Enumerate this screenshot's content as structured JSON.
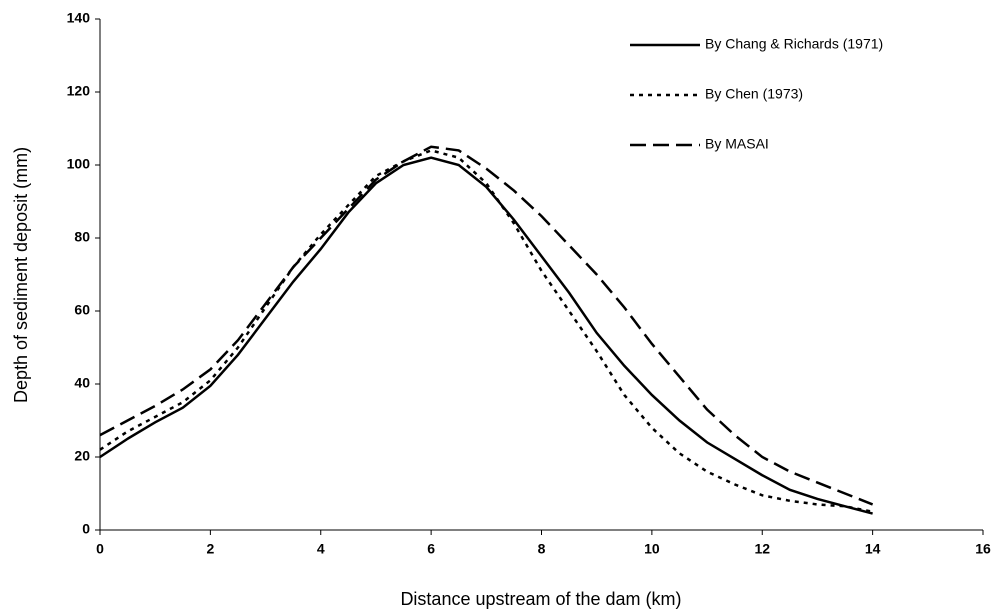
{
  "chart_data": {
    "type": "line",
    "x_label": "Distance upstream of the dam (km)",
    "y_label": "Depth of sediment deposit (mm)",
    "x": [
      0,
      0.5,
      1,
      1.5,
      2,
      2.5,
      3,
      3.5,
      4,
      4.5,
      5,
      5.5,
      6,
      6.5,
      7,
      7.5,
      8,
      8.5,
      9,
      9.5,
      10,
      10.5,
      11,
      11.5,
      12,
      12.5,
      13,
      13.5,
      14
    ],
    "series": [
      {
        "name": "By Chang & Richards (1971)",
        "color": "#000000",
        "style": "solid",
        "values": [
          20,
          25,
          29.5,
          33.5,
          39.5,
          48,
          58,
          68,
          77,
          87,
          95,
          100,
          102,
          100,
          94,
          85,
          75,
          65,
          54,
          45,
          37,
          30,
          24,
          19.5,
          15,
          11,
          8.5,
          6.5,
          4.5
        ]
      },
      {
        "name": "By Chen (1973)",
        "color": "#000000",
        "style": "dotted",
        "values": [
          22,
          27,
          31,
          35,
          41,
          50,
          61,
          72,
          81,
          89,
          97,
          101,
          104,
          102,
          95,
          84,
          71,
          60,
          49,
          37,
          28,
          21,
          16,
          12.5,
          9.5,
          8,
          7,
          6.5,
          5
        ]
      },
      {
        "name": "By MASAI",
        "color": "#000000",
        "style": "dashed",
        "values": [
          26,
          30,
          34,
          38.5,
          44,
          52,
          62,
          72,
          80,
          88,
          96,
          101,
          105,
          104,
          99,
          93,
          86,
          78,
          70,
          61,
          51,
          42,
          33,
          26,
          20,
          16,
          13,
          10,
          7
        ]
      }
    ],
    "xlim": [
      0,
      16
    ],
    "xticks": [
      0,
      2,
      4,
      6,
      8,
      10,
      12,
      14,
      16
    ],
    "ylim": [
      0,
      140
    ],
    "yticks": [
      0,
      20,
      40,
      60,
      80,
      100,
      120,
      140
    ],
    "grid": false,
    "legend": "top-right"
  }
}
